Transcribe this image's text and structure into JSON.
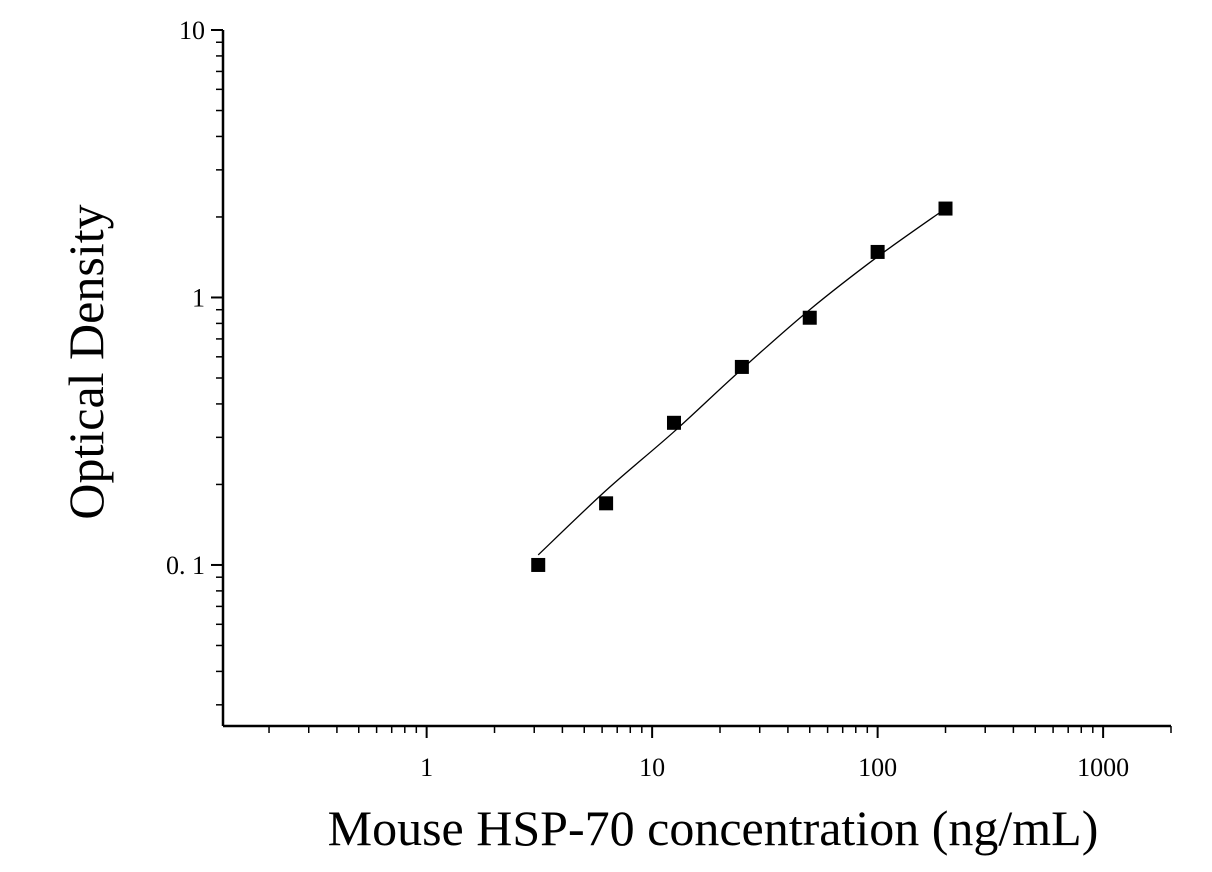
{
  "chart_data": {
    "type": "scatter",
    "xlabel": "Mouse HSP-70 concentration (ng/mL)",
    "ylabel": "Optical Density",
    "xscale": "log",
    "yscale": "log",
    "xlim": [
      0.125,
      2000
    ],
    "ylim": [
      0.025,
      10
    ],
    "grid": false,
    "legend": "none",
    "xticks": [
      {
        "value": 1,
        "label": "1"
      },
      {
        "value": 10,
        "label": "10"
      },
      {
        "value": 100,
        "label": "100"
      },
      {
        "value": 1000,
        "label": "1000"
      }
    ],
    "yticks": [
      {
        "value": 0.1,
        "label": "0. 1"
      },
      {
        "value": 1,
        "label": "1"
      },
      {
        "value": 10,
        "label": "10"
      }
    ],
    "series": [
      {
        "marker": "square",
        "color": "#000000",
        "points": [
          {
            "x": 3.125,
            "y": 0.1
          },
          {
            "x": 6.25,
            "y": 0.17
          },
          {
            "x": 12.5,
            "y": 0.34
          },
          {
            "x": 25,
            "y": 0.55
          },
          {
            "x": 50,
            "y": 0.84
          },
          {
            "x": 100,
            "y": 1.48
          },
          {
            "x": 200,
            "y": 2.15
          }
        ],
        "fit_curve": {
          "color": "#000000",
          "points": [
            {
              "x": 3.125,
              "y": 0.109
            },
            {
              "x": 6.25,
              "y": 0.19
            },
            {
              "x": 12.5,
              "y": 0.315
            },
            {
              "x": 25,
              "y": 0.54
            },
            {
              "x": 50,
              "y": 0.9
            },
            {
              "x": 100,
              "y": 1.42
            },
            {
              "x": 200,
              "y": 2.15
            }
          ]
        }
      }
    ]
  }
}
